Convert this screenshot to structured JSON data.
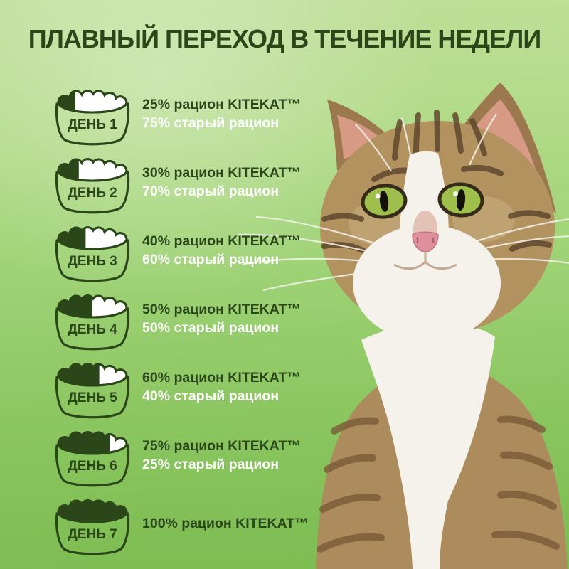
{
  "title": "ПЛАВНЫЙ ПЕРЕХОД В ТЕЧЕНИЕ НЕДЕЛИ",
  "brand": "KITEKAT™",
  "colors": {
    "accent_dark_green": "#2b4619",
    "ration_new_text": "#2b4619",
    "ration_old_text": "#ffffff",
    "bowl_outline": "#2b4619",
    "bowl_food_white": "#ffffff",
    "bg_light_green": "#bfe09a",
    "bg_deep_green": "#7cbc51"
  },
  "schedule": [
    {
      "day_label": "ДЕНЬ 1",
      "kitekat_percent": 25,
      "old_percent": 75,
      "line1": "25% рацион KITEKAT™",
      "line2": "75% старый рацион"
    },
    {
      "day_label": "ДЕНЬ 2",
      "kitekat_percent": 30,
      "old_percent": 70,
      "line1": "30% рацион KITEKAT™",
      "line2": "70% старый рацион"
    },
    {
      "day_label": "ДЕНЬ 3",
      "kitekat_percent": 40,
      "old_percent": 60,
      "line1": "40% рацион KITEKAT™",
      "line2": "60% старый рацион"
    },
    {
      "day_label": "ДЕНЬ 4",
      "kitekat_percent": 50,
      "old_percent": 50,
      "line1": "50% рацион KITEKAT™",
      "line2": "50% старый рацион"
    },
    {
      "day_label": "ДЕНЬ 5",
      "kitekat_percent": 60,
      "old_percent": 40,
      "line1": "60% рацион KITEKAT™",
      "line2": "40% старый рацион"
    },
    {
      "day_label": "ДЕНЬ 6",
      "kitekat_percent": 75,
      "old_percent": 25,
      "line1": "75% рацион KITEKAT™",
      "line2": "25% старый рацион"
    },
    {
      "day_label": "ДЕНЬ 7",
      "kitekat_percent": 100,
      "old_percent": 0,
      "line1": "100% рацион KITEKAT™",
      "line2": ""
    }
  ],
  "cat_photo_alt": "tabby-cat-with-white-chest-and-green-eyes"
}
